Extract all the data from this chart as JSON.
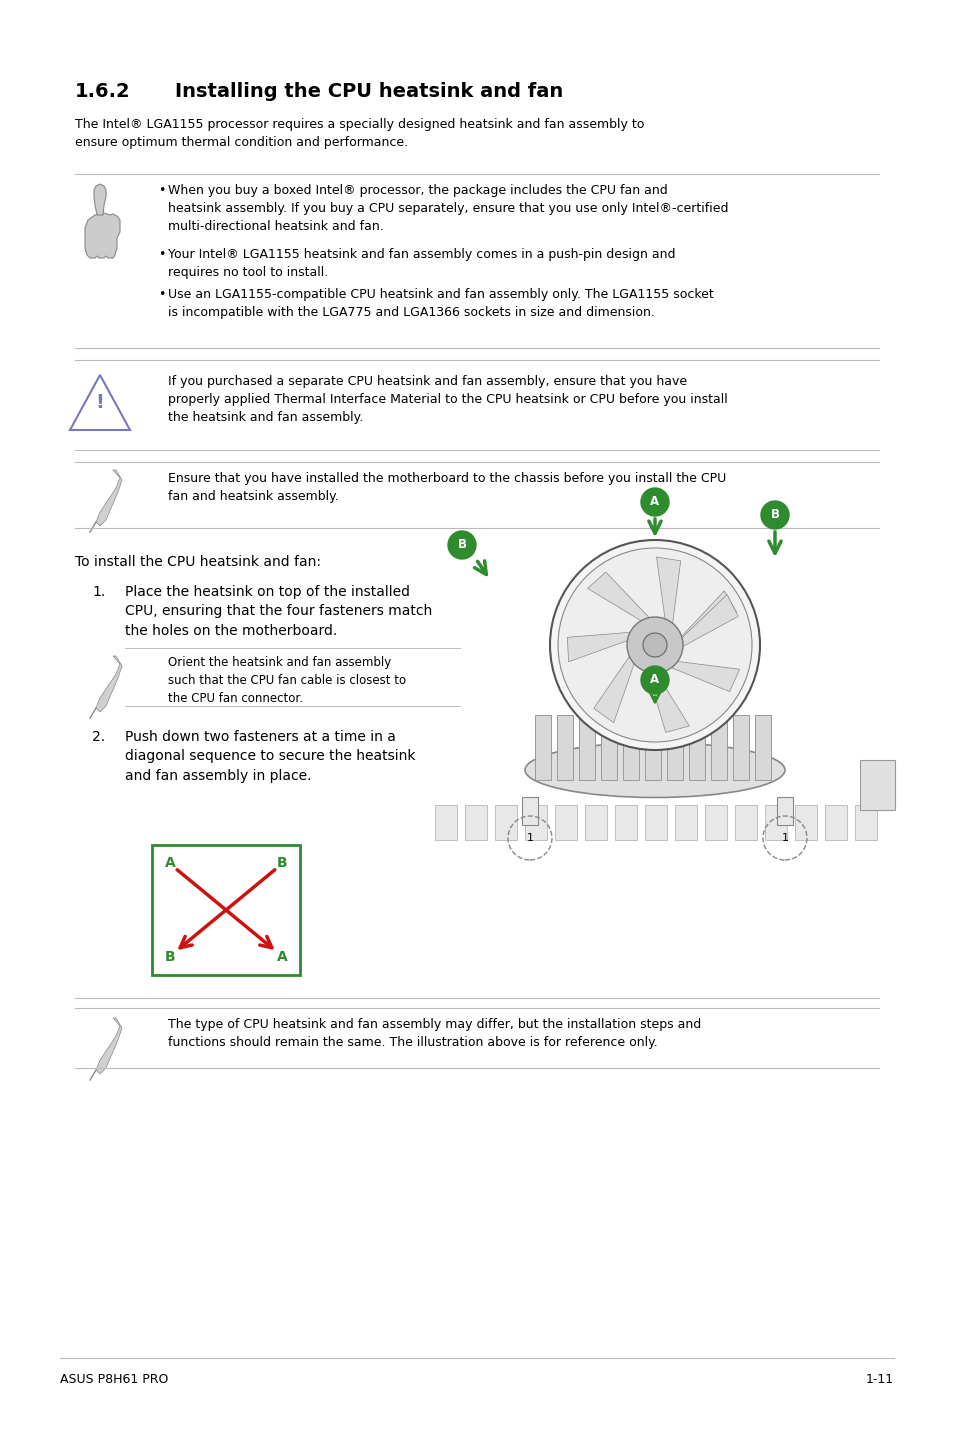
{
  "bg_color": "#ffffff",
  "text_color": "#000000",
  "title_section": "1.6.2",
  "title_text": "Installing the CPU heatsink and fan",
  "intro_text": "The Intel® LGA1155 processor requires a specially designed heatsink and fan assembly to\nensure optimum thermal condition and performance.",
  "bullet1": "When you buy a boxed Intel® processor, the package includes the CPU fan and\nheatsink assembly. If you buy a CPU separately, ensure that you use only Intel®-certified\nmulti-directional heatsink and fan.",
  "bullet2": "Your Intel® LGA1155 heatsink and fan assembly comes in a push-pin design and\nrequires no tool to install.",
  "bullet3": "Use an LGA1155-compatible CPU heatsink and fan assembly only. The LGA1155 socket\nis incompatible with the LGA775 and LGA1366 sockets in size and dimension.",
  "warning_text": "If you purchased a separate CPU heatsink and fan assembly, ensure that you have\nproperly applied Thermal Interface Material to the CPU heatsink or CPU before you install\nthe heatsink and fan assembly.",
  "note2_text": "Ensure that you have installed the motherboard to the chassis before you install the CPU\nfan and heatsink assembly.",
  "install_intro": "To install the CPU heatsink and fan:",
  "step1_num": "1.",
  "step1_text": "Place the heatsink on top of the installed\nCPU, ensuring that the four fasteners match\nthe holes on the motherboard.",
  "step1_note": "Orient the heatsink and fan assembly\nsuch that the CPU fan cable is closest to\nthe CPU fan connector.",
  "step2_num": "2.",
  "step2_text": "Push down two fasteners at a time in a\ndiagonal sequence to secure the heatsink\nand fan assembly in place.",
  "note3_text": "The type of CPU heatsink and fan assembly may differ, but the installation steps and\nfunctions should remain the same. The illustration above is for reference only.",
  "footer_left": "ASUS P8H61 PRO",
  "footer_right": "1-11",
  "green_color": "#2e8b2e",
  "red_color": "#cc1111",
  "warning_triangle_color": "#7777bb",
  "line_color": "#bbbbbb",
  "icon_color": "#999999"
}
